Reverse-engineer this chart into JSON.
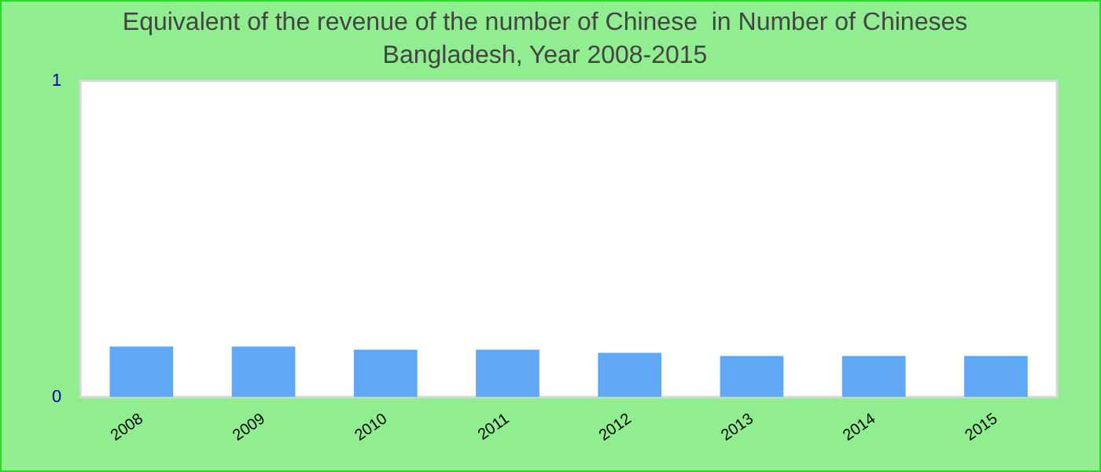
{
  "chart_data": {
    "type": "bar",
    "title": "Equivalent of the revenue of the number of Chinese  in Number of Chineses",
    "subtitle": "Bangladesh, Year 2008-2015",
    "categories": [
      "2008",
      "2009",
      "2010",
      "2011",
      "2012",
      "2013",
      "2014",
      "2015"
    ],
    "values": [
      0.16,
      0.16,
      0.15,
      0.15,
      0.14,
      0.13,
      0.13,
      0.13
    ],
    "color": "#61a8f4",
    "ylim": [
      0,
      1
    ],
    "yticks": [
      0,
      1
    ],
    "grid": false,
    "legend": false
  }
}
